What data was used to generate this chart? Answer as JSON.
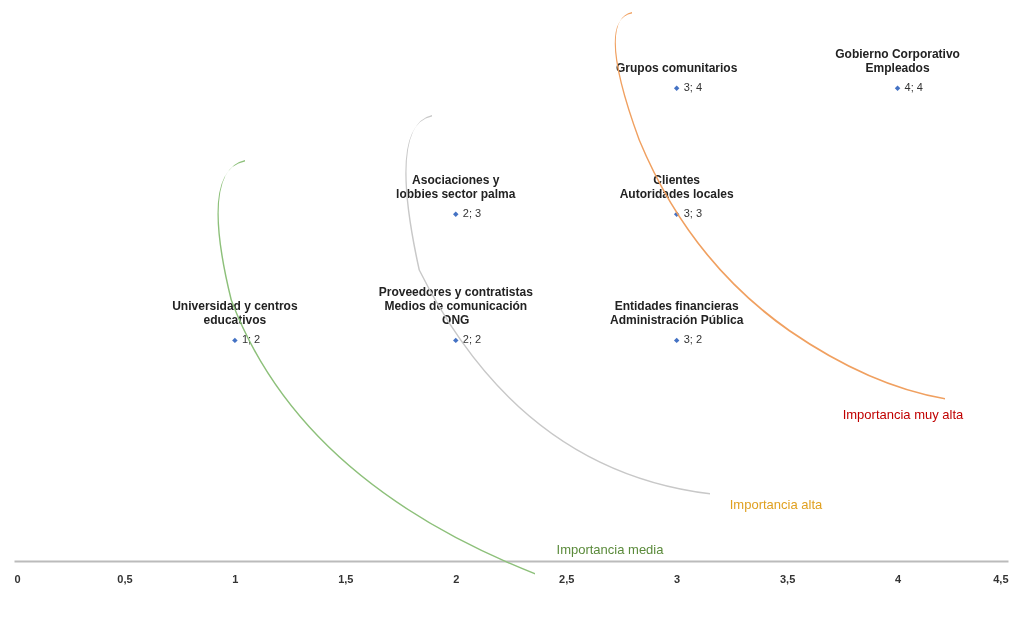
{
  "chart_data": {
    "type": "scatter",
    "x": [
      1,
      2,
      2,
      3,
      3,
      3,
      4
    ],
    "values": [
      2,
      2,
      3,
      2,
      3,
      4,
      4
    ],
    "value_labels": [
      "1; 2",
      "2; 2",
      "2; 3",
      "3; 2",
      "3; 3",
      "3; 4",
      "4; 4"
    ],
    "color": "#4472c4",
    "marker": "diamond",
    "xlim": [
      0,
      4.5
    ],
    "ylim": [
      0.25,
      4.7
    ],
    "xticks": [
      0,
      {
        "value": 0.5,
        "label": "0,5"
      },
      1,
      {
        "value": 1.5,
        "label": "1,5"
      },
      2,
      {
        "value": 2.5,
        "label": "2,5"
      },
      3,
      {
        "value": 3.5,
        "label": "3,5"
      },
      4,
      {
        "value": 4.5,
        "label": "4,5"
      }
    ],
    "tick_labels": "x",
    "grid": false,
    "annotations": [
      {
        "text": "Universidad y centros\neducativos",
        "x": 1,
        "y": 2
      },
      {
        "text": "Proveedores y contratistas\nMedios de comunicación\nONG",
        "x": 2,
        "y": 2
      },
      {
        "text": "Asociaciones y\nlobbies sector palma",
        "x": 2,
        "y": 3
      },
      {
        "text": "Entidades financieras\nAdministración Pública",
        "x": 3,
        "y": 2
      },
      {
        "text": "Clientes\nAutoridades locales",
        "x": 3,
        "y": 3
      },
      {
        "text": "Grupos comunitarios",
        "x": 3,
        "y": 4
      },
      {
        "text": "Gobierno Corporativo\nEmpleados",
        "x": 4,
        "y": 4
      },
      "Importancia muy alta",
      "Importancia alta",
      "Importancia media"
    ]
  }
}
